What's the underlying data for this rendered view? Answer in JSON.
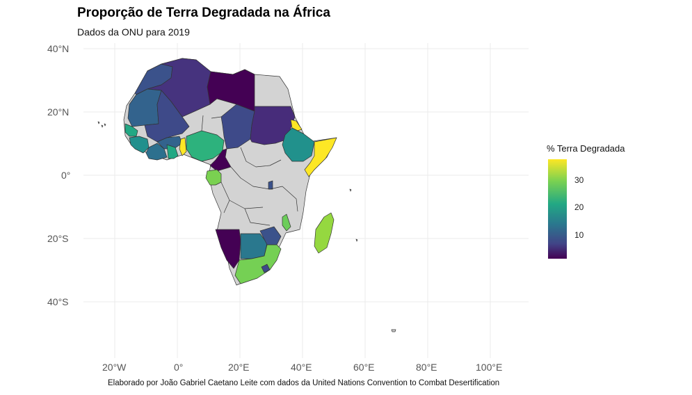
{
  "title": "Proporção de Terra Degradada na África",
  "subtitle": "Dados da ONU para 2019",
  "caption": "Elaborado por João Gabriel Caetano Leite com dados da United Nations Convention to Combat Desertification",
  "legend": {
    "title": "% Terra Degradada",
    "ticks": [
      "30",
      "20",
      "10"
    ],
    "colorscale": [
      "#440154",
      "#414487",
      "#2a788e",
      "#22a884",
      "#7ad151",
      "#fde725"
    ]
  },
  "axes": {
    "y_labels": [
      "40°N",
      "20°N",
      "0°",
      "20°S",
      "40°S"
    ],
    "x_labels": [
      "20°W",
      "0°",
      "20°E",
      "40°E",
      "60°E",
      "80°E",
      "100°E"
    ]
  },
  "colors": {
    "no_data": "#d3d3d3",
    "border": "#333333",
    "grid": "#ebebeb"
  },
  "regions": [
    {
      "name": "Morocco",
      "value": 5
    },
    {
      "name": "Algeria",
      "value": 6
    },
    {
      "name": "Libya",
      "value": 2
    },
    {
      "name": "Egypt",
      "value": null
    },
    {
      "name": "Mauritania",
      "value": 12
    },
    {
      "name": "Mali",
      "value": 10
    },
    {
      "name": "Niger",
      "value": null
    },
    {
      "name": "Chad",
      "value": 10
    },
    {
      "name": "Sudan",
      "value": 6
    },
    {
      "name": "Senegal",
      "value": 20
    },
    {
      "name": "Guinea",
      "value": 21
    },
    {
      "name": "Burkina Faso",
      "value": 12
    },
    {
      "name": "Ivory Coast",
      "value": 13
    },
    {
      "name": "Ghana",
      "value": 21
    },
    {
      "name": "Togo",
      "value": 37
    },
    {
      "name": "Nigeria",
      "value": 23
    },
    {
      "name": "Cameroon",
      "value": 3
    },
    {
      "name": "Eritrea",
      "value": 35
    },
    {
      "name": "Ethiopia",
      "value": 21
    },
    {
      "name": "Somalia",
      "value": 38
    },
    {
      "name": "Gabon",
      "value": 29
    },
    {
      "name": "Malawi",
      "value": 27
    },
    {
      "name": "Madagascar",
      "value": 30
    },
    {
      "name": "Namibia",
      "value": 3
    },
    {
      "name": "Botswana",
      "value": 16
    },
    {
      "name": "Zimbabwe",
      "value": 10
    },
    {
      "name": "South Africa",
      "value": 28
    },
    {
      "name": "Lesotho",
      "value": 10
    },
    {
      "name": "Rwanda/Burundi",
      "value": 12
    }
  ]
}
